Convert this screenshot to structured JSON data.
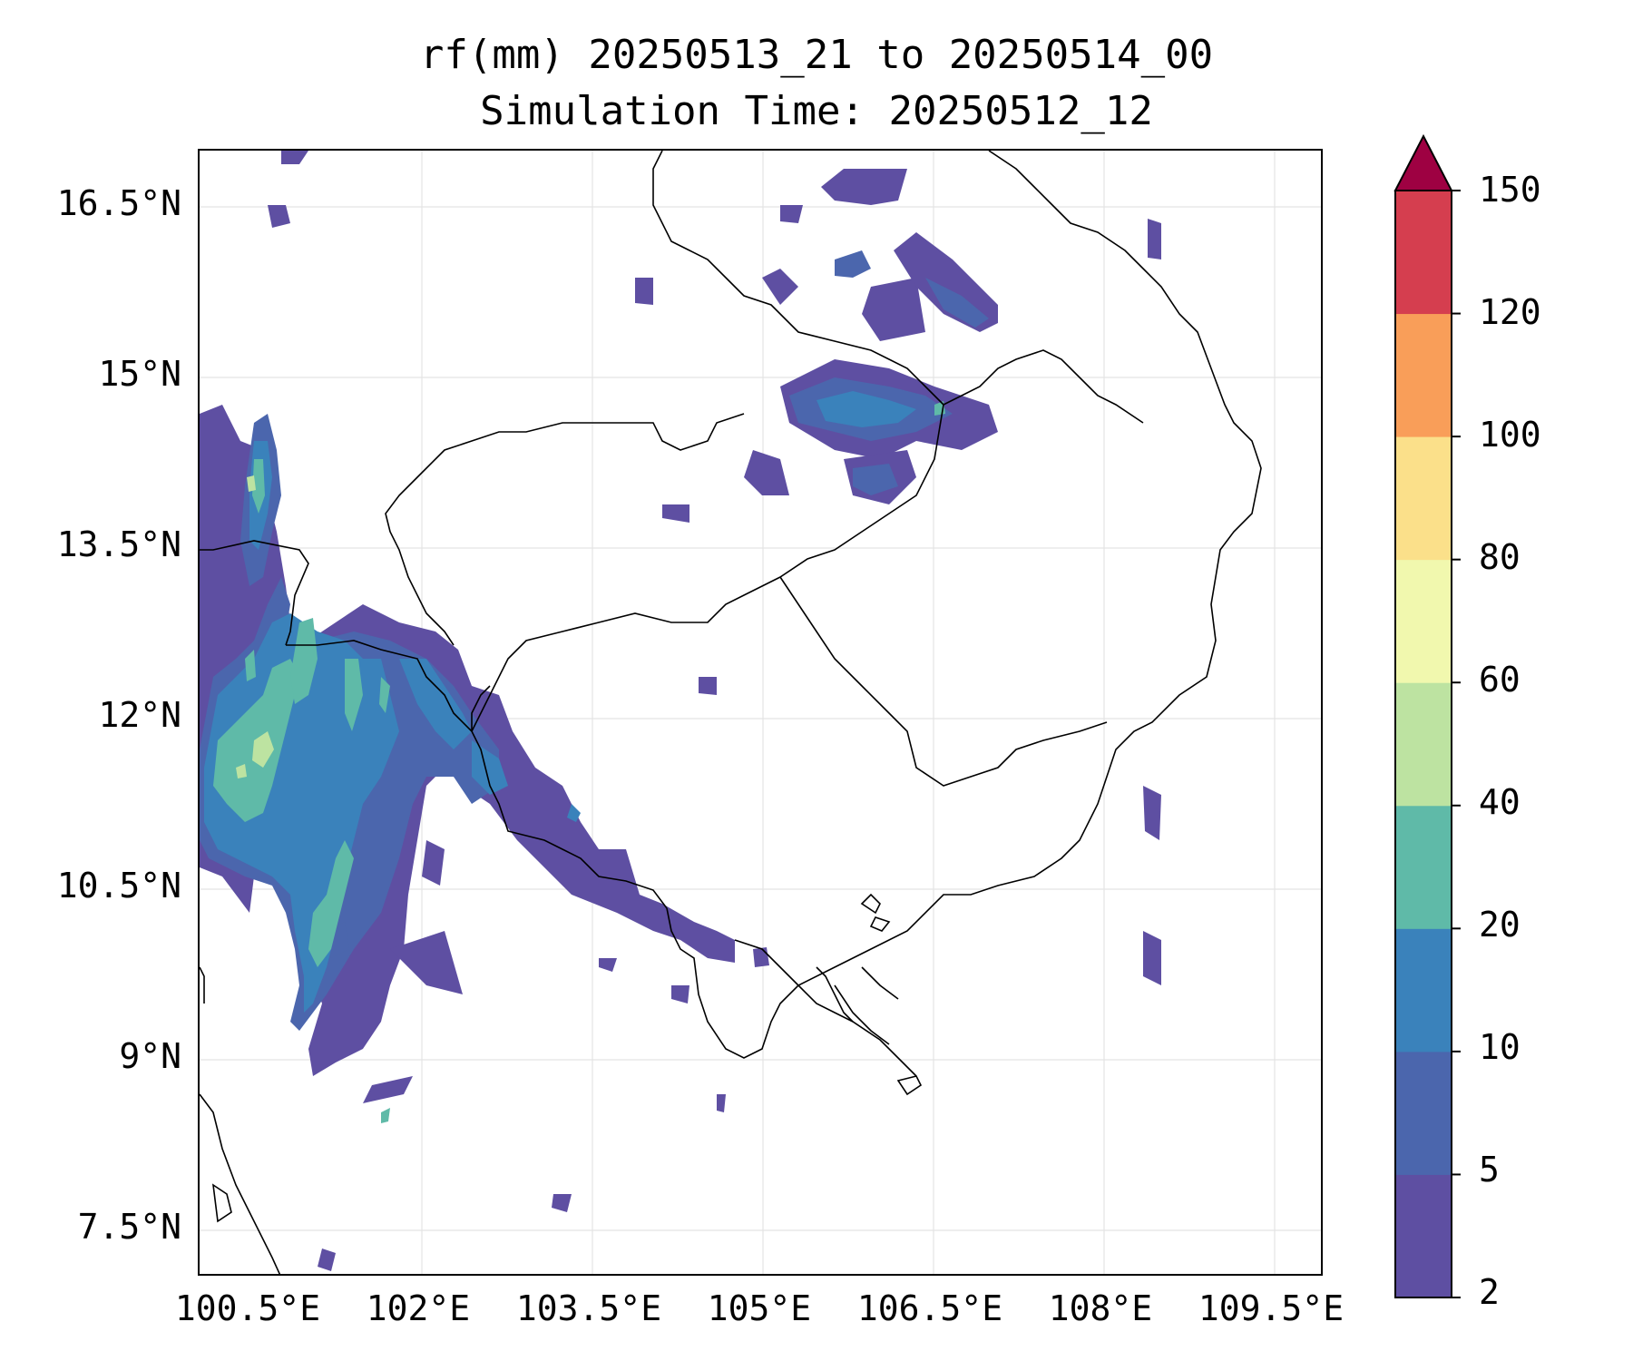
{
  "title": {
    "line1": "rf(mm) 20250513_21 to 20250514_00",
    "line2": "Simulation Time: 20250512_12"
  },
  "axes": {
    "lat_ticks": [
      "16.5°N",
      "15°N",
      "13.5°N",
      "12°N",
      "10.5°N",
      "9°N",
      "7.5°N"
    ],
    "lon_ticks": [
      "100.5°E",
      "102°E",
      "103.5°E",
      "105°E",
      "106.5°E",
      "108°E",
      "109.5°E"
    ]
  },
  "colorbar": {
    "levels": [
      "2",
      "5",
      "10",
      "20",
      "40",
      "60",
      "80",
      "100",
      "120",
      "150"
    ],
    "colors": [
      "#5e4fa2",
      "#4b66ad",
      "#3a82bb",
      "#5fbaa8",
      "#bde3a1",
      "#f1f8ae",
      "#fbe08a",
      "#f99e59",
      "#d53e4f",
      "#9e0142"
    ],
    "extend": "max"
  },
  "map": {
    "region": "Cambodia / Gulf of Thailand / southern Vietnam",
    "lon_range": [
      99.8,
      109.7
    ],
    "lat_range": [
      7.0,
      16.9
    ],
    "grid": true
  }
}
